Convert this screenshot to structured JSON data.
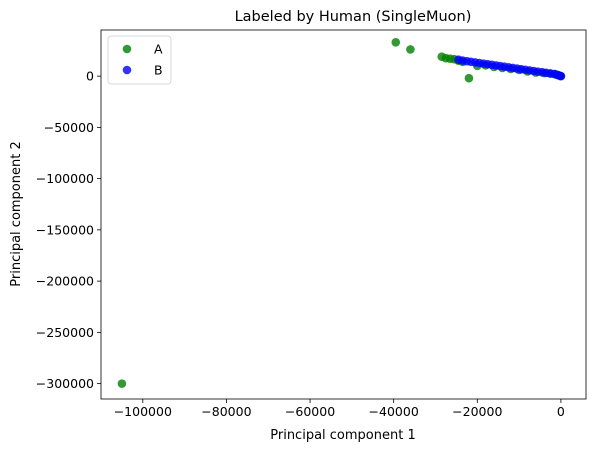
{
  "chart_data": {
    "type": "scatter",
    "title": "Labeled by Human (SingleMuon)",
    "xlabel": "Principal component 1",
    "ylabel": "Principal component 2",
    "xlim": [
      -110000,
      6000
    ],
    "ylim": [
      -315000,
      45000
    ],
    "xticks": [
      -100000,
      -80000,
      -60000,
      -40000,
      -20000,
      0
    ],
    "yticks": [
      -300000,
      -250000,
      -200000,
      -150000,
      -100000,
      -50000,
      0
    ],
    "grid": false,
    "legend_position": "top-left",
    "series": [
      {
        "name": "A",
        "color": "#008000",
        "points": [
          [
            -105000,
            -300000
          ],
          [
            -39500,
            33000
          ],
          [
            -36000,
            26000
          ],
          [
            -28500,
            19000
          ],
          [
            -27500,
            17500
          ],
          [
            -26500,
            17000
          ],
          [
            -25500,
            16500
          ],
          [
            -24500,
            15000
          ],
          [
            -23500,
            14000
          ],
          [
            -22000,
            -2000
          ],
          [
            -20000,
            10000
          ],
          [
            -18000,
            10500
          ],
          [
            -16000,
            9000
          ],
          [
            -14000,
            8000
          ],
          [
            -12000,
            7000
          ],
          [
            -10000,
            6000
          ],
          [
            -8000,
            4500
          ],
          [
            -6000,
            3500
          ],
          [
            -4000,
            3000
          ],
          [
            -2500,
            2500
          ],
          [
            -1500,
            2000
          ],
          [
            -800,
            1000
          ],
          [
            -300,
            500
          ],
          [
            0,
            0
          ]
        ]
      },
      {
        "name": "B",
        "color": "#0000ff",
        "points": [
          [
            -24500,
            16000
          ],
          [
            -23500,
            15200
          ],
          [
            -22500,
            14600
          ],
          [
            -21500,
            14000
          ],
          [
            -20500,
            13400
          ],
          [
            -19500,
            12800
          ],
          [
            -18500,
            12200
          ],
          [
            -17500,
            11600
          ],
          [
            -16500,
            11000
          ],
          [
            -15500,
            10400
          ],
          [
            -14500,
            9800
          ],
          [
            -13500,
            9200
          ],
          [
            -12500,
            8600
          ],
          [
            -11500,
            8000
          ],
          [
            -10500,
            7400
          ],
          [
            -9500,
            6800
          ],
          [
            -8500,
            6200
          ],
          [
            -7500,
            5600
          ],
          [
            -6500,
            5000
          ],
          [
            -5500,
            4400
          ],
          [
            -4500,
            3800
          ],
          [
            -3500,
            3200
          ],
          [
            -2500,
            2600
          ],
          [
            -1500,
            2000
          ],
          [
            -800,
            1200
          ],
          [
            -300,
            500
          ],
          [
            0,
            0
          ]
        ]
      }
    ]
  }
}
